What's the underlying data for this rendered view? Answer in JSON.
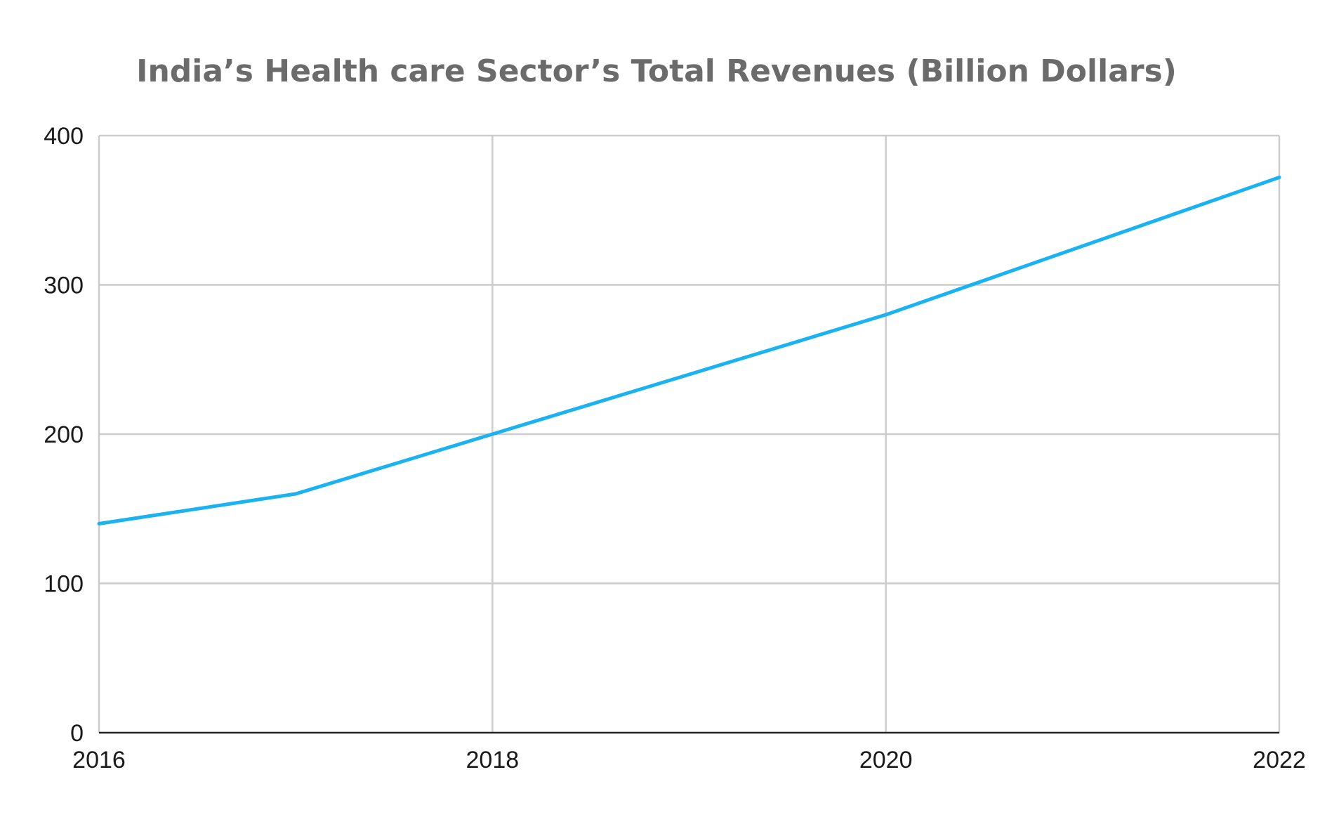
{
  "chart_data": {
    "type": "line",
    "title": "India’s Health care Sector’s Total Revenues (Billion Dollars)",
    "xlabel": "",
    "ylabel": "",
    "xlim": [
      2016,
      2022
    ],
    "ylim": [
      0,
      400
    ],
    "x_ticks": [
      2016,
      2018,
      2020,
      2022
    ],
    "y_ticks": [
      0,
      100,
      200,
      300,
      400
    ],
    "grid": true,
    "legend": "none",
    "series": [
      {
        "name": "Total Revenues",
        "color": "#1ab2f0",
        "x": [
          2016,
          2017,
          2018,
          2020,
          2022
        ],
        "y": [
          140,
          160,
          200,
          280,
          372
        ]
      }
    ]
  }
}
